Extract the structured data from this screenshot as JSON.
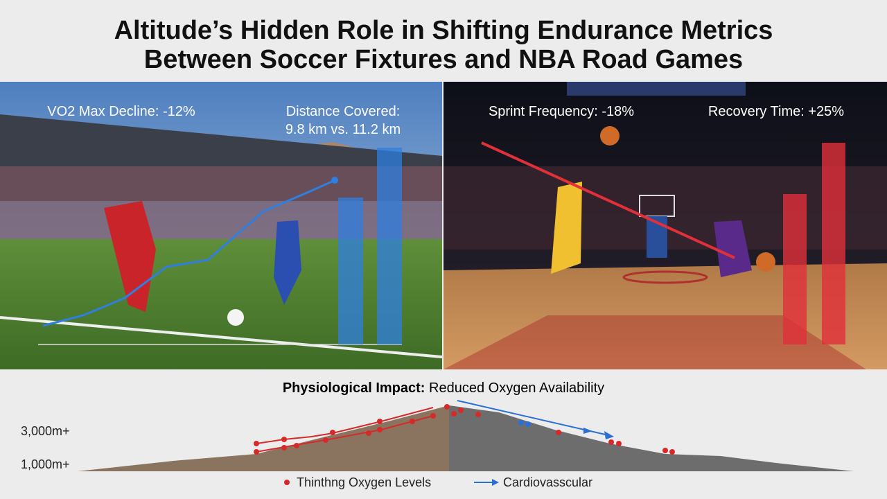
{
  "header": {
    "title_lines": [
      "Altitude’s Hidden Role in Shifting Endurance Metrics",
      "Between Soccer Fixtures and NBA Road Games"
    ]
  },
  "panels": {
    "soccer": {
      "vo2": "VO2 Max Decline: -12%",
      "distance_line1": "Distance Covered:",
      "distance_line2": "9.8 km vs. 11.2 km"
    },
    "basketball": {
      "sprint": "Sprint Frequency: -18%",
      "recovery": "Recovery Time: +25%"
    }
  },
  "impact": {
    "title_bold": "Physiological Impact:",
    "title_rest": "Reduced Oxygen Availability",
    "altitude_labels": [
      "3,000m+",
      "1,000m+"
    ],
    "legend": [
      "Thinthng Oxygen Levels",
      "Cardiovasscular"
    ]
  }
}
